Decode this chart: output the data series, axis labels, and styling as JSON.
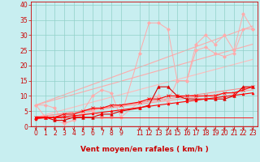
{
  "xlabel": "Vent moyen/en rafales ( km/h )",
  "bg_color": "#c8eef0",
  "grid_color": "#90d0c8",
  "ylim": [
    0,
    41
  ],
  "xlim": [
    -0.5,
    23.5
  ],
  "yticks": [
    0,
    5,
    10,
    15,
    20,
    25,
    30,
    35,
    40
  ],
  "x_ticks": [
    0,
    1,
    2,
    3,
    4,
    5,
    6,
    7,
    8,
    9,
    11,
    12,
    13,
    14,
    15,
    16,
    17,
    18,
    19,
    20,
    21,
    22,
    23
  ],
  "series": [
    {
      "x": [
        0,
        23
      ],
      "y": [
        7,
        33
      ],
      "color": "#ffaaaa",
      "lw": 0.8,
      "marker": null,
      "linestyle": "-",
      "zorder": 1
    },
    {
      "x": [
        0,
        23
      ],
      "y": [
        7,
        27
      ],
      "color": "#ffaaaa",
      "lw": 0.8,
      "marker": null,
      "linestyle": "-",
      "zorder": 1
    },
    {
      "x": [
        0,
        23
      ],
      "y": [
        3,
        22
      ],
      "color": "#ffbbbb",
      "lw": 0.8,
      "marker": null,
      "linestyle": "-",
      "zorder": 1
    },
    {
      "x": [
        0,
        23
      ],
      "y": [
        3,
        13
      ],
      "color": "#ff8888",
      "lw": 0.8,
      "marker": null,
      "linestyle": "-",
      "zorder": 1
    },
    {
      "x": [
        0,
        23
      ],
      "y": [
        3,
        12
      ],
      "color": "#ff9999",
      "lw": 0.8,
      "marker": null,
      "linestyle": "-",
      "zorder": 1
    },
    {
      "x": [
        0,
        1,
        2,
        3,
        4,
        5,
        6,
        7,
        8,
        9,
        11,
        12,
        13,
        14,
        15,
        16,
        17,
        18,
        19,
        20,
        21,
        22,
        23
      ],
      "y": [
        7,
        3,
        2,
        1,
        2,
        5,
        10,
        12,
        11,
        3,
        24,
        34,
        34,
        32,
        15,
        15,
        27,
        30,
        27,
        30,
        25,
        37,
        32
      ],
      "color": "#ffaaaa",
      "lw": 0.7,
      "marker": "D",
      "markersize": 2,
      "linestyle": "-",
      "zorder": 2
    },
    {
      "x": [
        0,
        1,
        2,
        3,
        4,
        5,
        6,
        7,
        8,
        9,
        11,
        12,
        13,
        14,
        15,
        16,
        17,
        18,
        19,
        20,
        21,
        22,
        23
      ],
      "y": [
        7,
        7,
        6,
        1,
        2,
        4,
        5,
        3,
        3,
        3,
        8,
        9,
        10,
        8,
        15,
        15,
        25,
        26,
        24,
        23,
        24,
        32,
        32
      ],
      "color": "#ffaaaa",
      "lw": 0.7,
      "marker": "D",
      "markersize": 2,
      "linestyle": "-",
      "zorder": 2
    },
    {
      "x": [
        0,
        1,
        2,
        3,
        4,
        5,
        6,
        7,
        8,
        9,
        11,
        12,
        13,
        14,
        15,
        16,
        17,
        18,
        19,
        20,
        21,
        22,
        23
      ],
      "y": [
        3,
        3,
        2,
        2,
        3,
        3,
        3,
        4,
        4,
        5,
        6,
        7,
        13,
        13,
        10,
        9,
        9,
        9,
        9,
        9,
        10,
        13,
        13
      ],
      "color": "#dd0000",
      "lw": 0.8,
      "marker": "^",
      "markersize": 2.5,
      "linestyle": "-",
      "zorder": 3
    },
    {
      "x": [
        0,
        1,
        2,
        3,
        4,
        5,
        6,
        7,
        8,
        9,
        11,
        12,
        13,
        14,
        15,
        16,
        17,
        18,
        19,
        20,
        21,
        22,
        23
      ],
      "y": [
        3,
        3,
        3,
        4,
        4,
        5,
        6,
        6,
        7,
        7,
        8,
        9,
        9,
        10,
        10,
        10,
        10,
        10,
        10,
        11,
        11,
        12,
        13
      ],
      "color": "#ff0000",
      "lw": 0.8,
      "marker": "x",
      "markersize": 2.5,
      "linestyle": "-",
      "zorder": 3
    },
    {
      "x": [
        0,
        1,
        2,
        3,
        4,
        5,
        6,
        7,
        8,
        9,
        11,
        12,
        13,
        14,
        15,
        16,
        17,
        18,
        19,
        20,
        21,
        22,
        23
      ],
      "y": [
        2.5,
        2.8,
        3.0,
        3.2,
        3.5,
        3.8,
        4.2,
        4.6,
        5.0,
        5.4,
        6.2,
        6.6,
        7.0,
        7.4,
        7.8,
        8.2,
        8.6,
        9.0,
        9.4,
        9.8,
        10.2,
        10.6,
        11.0
      ],
      "color": "#ff0000",
      "lw": 0.8,
      "marker": "^",
      "markersize": 2,
      "linestyle": "-",
      "zorder": 3
    },
    {
      "x": [
        0,
        23
      ],
      "y": [
        3,
        3
      ],
      "color": "#ff0000",
      "lw": 0.6,
      "marker": null,
      "linestyle": "-",
      "zorder": 2
    }
  ],
  "label_color": "#cc0000",
  "xlabel_fontsize": 6.5,
  "tick_fontsize": 5.5,
  "arrow_color": "#cc0000"
}
